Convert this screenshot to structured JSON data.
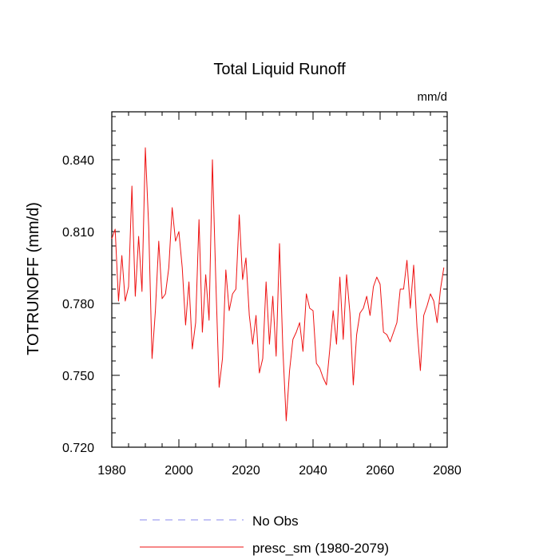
{
  "chart_data": {
    "type": "line",
    "title": "Total Liquid Runoff",
    "units_label": "mm/d",
    "ylabel": "TOTRUNOFF  (mm/d)",
    "xlabel": "",
    "xlim": [
      1980,
      2080
    ],
    "ylim": [
      0.72,
      0.86
    ],
    "x_ticks": [
      1980,
      2000,
      2020,
      2040,
      2060,
      2080
    ],
    "x_tick_labels": [
      "1980",
      "2000",
      "2020",
      "2040",
      "2060",
      "2080"
    ],
    "y_ticks": [
      0.72,
      0.75,
      0.78,
      0.81,
      0.84
    ],
    "y_tick_labels": [
      "0.720",
      "0.750",
      "0.780",
      "0.810",
      "0.840"
    ],
    "x_minor_step": 5,
    "y_minor_step": 0.006,
    "grid": false,
    "legend": [
      {
        "name": "No Obs",
        "color": "#8888ee",
        "dash": "dashed"
      },
      {
        "name": "presc_sm (1980-2079)",
        "color": "#ee1111",
        "dash": "solid"
      }
    ],
    "series": [
      {
        "name": "presc_sm (1980-2079)",
        "color": "#ee1111",
        "x": [
          1980,
          1981,
          1982,
          1983,
          1984,
          1985,
          1986,
          1987,
          1988,
          1989,
          1990,
          1991,
          1992,
          1993,
          1994,
          1995,
          1996,
          1997,
          1998,
          1999,
          2000,
          2001,
          2002,
          2003,
          2004,
          2005,
          2006,
          2007,
          2008,
          2009,
          2010,
          2011,
          2012,
          2013,
          2014,
          2015,
          2016,
          2017,
          2018,
          2019,
          2020,
          2021,
          2022,
          2023,
          2024,
          2025,
          2026,
          2027,
          2028,
          2029,
          2030,
          2031,
          2032,
          2033,
          2034,
          2035,
          2036,
          2037,
          2038,
          2039,
          2040,
          2041,
          2042,
          2043,
          2044,
          2045,
          2046,
          2047,
          2048,
          2049,
          2050,
          2051,
          2052,
          2053,
          2054,
          2055,
          2056,
          2057,
          2058,
          2059,
          2060,
          2061,
          2062,
          2063,
          2064,
          2065,
          2066,
          2067,
          2068,
          2069,
          2070,
          2071,
          2072,
          2073,
          2074,
          2075,
          2076,
          2077,
          2078,
          2079
        ],
        "values": [
          0.807,
          0.811,
          0.781,
          0.8,
          0.781,
          0.787,
          0.829,
          0.783,
          0.808,
          0.785,
          0.845,
          0.812,
          0.757,
          0.777,
          0.806,
          0.782,
          0.784,
          0.795,
          0.82,
          0.806,
          0.81,
          0.795,
          0.771,
          0.789,
          0.761,
          0.772,
          0.815,
          0.768,
          0.792,
          0.773,
          0.84,
          0.79,
          0.745,
          0.757,
          0.794,
          0.777,
          0.784,
          0.786,
          0.817,
          0.79,
          0.799,
          0.775,
          0.763,
          0.775,
          0.751,
          0.757,
          0.789,
          0.763,
          0.783,
          0.758,
          0.805,
          0.761,
          0.731,
          0.752,
          0.765,
          0.768,
          0.772,
          0.76,
          0.784,
          0.778,
          0.777,
          0.755,
          0.753,
          0.749,
          0.746,
          0.761,
          0.777,
          0.763,
          0.791,
          0.765,
          0.792,
          0.776,
          0.746,
          0.767,
          0.776,
          0.778,
          0.783,
          0.775,
          0.787,
          0.791,
          0.788,
          0.768,
          0.767,
          0.764,
          0.768,
          0.772,
          0.786,
          0.786,
          0.798,
          0.778,
          0.796,
          0.77,
          0.752,
          0.775,
          0.779,
          0.784,
          0.781,
          0.772,
          0.786,
          0.795
        ]
      }
    ]
  }
}
